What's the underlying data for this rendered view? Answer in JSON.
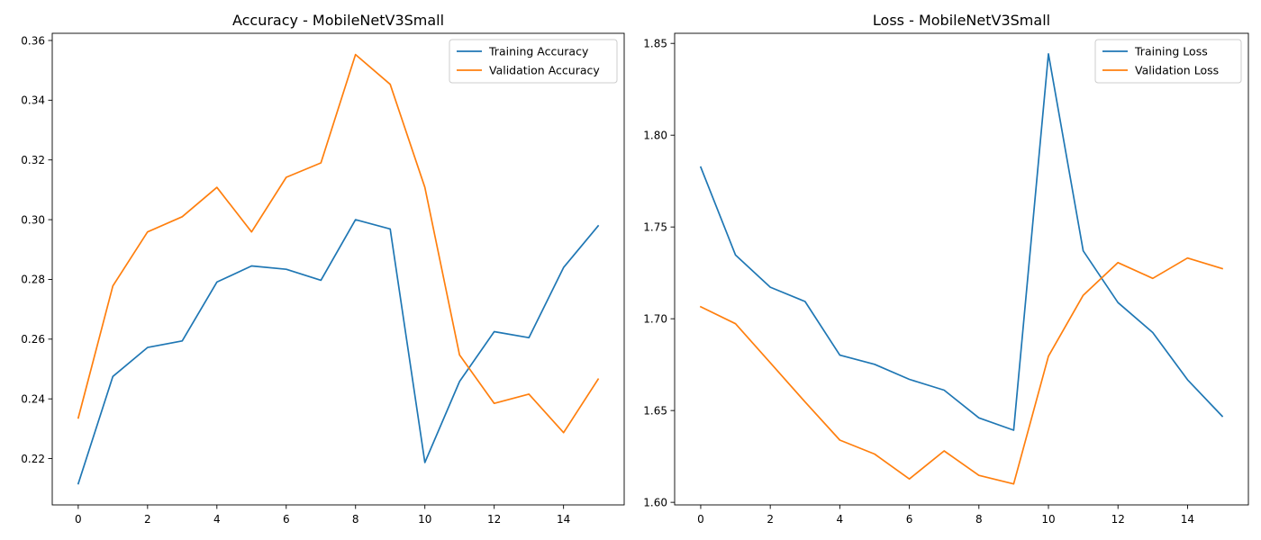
{
  "chart_data": [
    {
      "type": "line",
      "title": "Accuracy - MobileNetV3Small",
      "xlabel": "",
      "ylabel": "",
      "xlim": [
        -0.75,
        15.75
      ],
      "ylim": [
        0.2045,
        0.3624
      ],
      "x_ticks": [
        0,
        2,
        4,
        6,
        8,
        10,
        12,
        14
      ],
      "y_ticks": [
        0.22,
        0.24,
        0.26,
        0.28,
        0.3,
        0.32,
        0.34,
        0.36
      ],
      "y_tick_labels": [
        "0.22",
        "0.24",
        "0.26",
        "0.28",
        "0.30",
        "0.32",
        "0.34",
        "0.36"
      ],
      "grid": false,
      "legend_position": "upper right",
      "x": [
        0,
        1,
        2,
        3,
        4,
        5,
        6,
        7,
        8,
        9,
        10,
        11,
        12,
        13,
        14,
        15
      ],
      "series": [
        {
          "name": "Training Accuracy",
          "color": "#1f77b4",
          "values": [
            0.2116,
            0.2475,
            0.2572,
            0.2594,
            0.2791,
            0.2845,
            0.2834,
            0.2797,
            0.3,
            0.2969,
            0.2187,
            0.2458,
            0.2625,
            0.2605,
            0.284,
            0.2979
          ]
        },
        {
          "name": "Validation Accuracy",
          "color": "#ff7f0e",
          "values": [
            0.2336,
            0.2778,
            0.2959,
            0.301,
            0.3108,
            0.2959,
            0.3142,
            0.319,
            0.3553,
            0.3453,
            0.3108,
            0.2547,
            0.2385,
            0.2416,
            0.2287,
            0.2466
          ]
        }
      ]
    },
    {
      "type": "line",
      "title": "Loss - MobileNetV3Small",
      "xlabel": "",
      "ylabel": "",
      "xlim": [
        -0.75,
        15.75
      ],
      "ylim": [
        1.5986,
        1.8555
      ],
      "x_ticks": [
        0,
        2,
        4,
        6,
        8,
        10,
        12,
        14
      ],
      "y_ticks": [
        1.6,
        1.65,
        1.7,
        1.75,
        1.8,
        1.85
      ],
      "y_tick_labels": [
        "1.60",
        "1.65",
        "1.70",
        "1.75",
        "1.80",
        "1.85"
      ],
      "grid": false,
      "legend_position": "upper right",
      "x": [
        0,
        1,
        2,
        3,
        4,
        5,
        6,
        7,
        8,
        9,
        10,
        11,
        12,
        13,
        14,
        15
      ],
      "series": [
        {
          "name": "Training Loss",
          "color": "#1f77b4",
          "values": [
            1.7826,
            1.7347,
            1.7172,
            1.7094,
            1.6802,
            1.6752,
            1.667,
            1.6611,
            1.646,
            1.6393,
            1.8443,
            1.737,
            1.7088,
            1.6925,
            1.6668,
            1.6469
          ]
        },
        {
          "name": "Validation Loss",
          "color": "#ff7f0e",
          "values": [
            1.7065,
            1.6973,
            1.676,
            1.6547,
            1.6339,
            1.6263,
            1.6127,
            1.628,
            1.6147,
            1.61,
            1.6796,
            1.7128,
            1.7306,
            1.722,
            1.7331,
            1.7273
          ]
        }
      ]
    }
  ]
}
